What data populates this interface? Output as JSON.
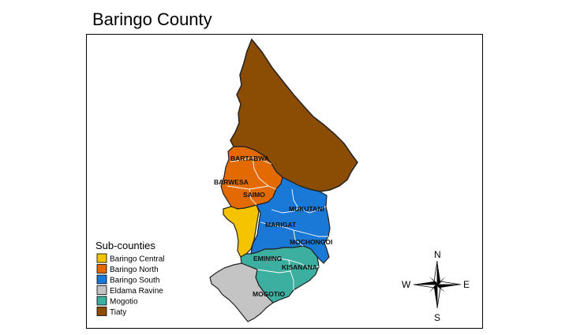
{
  "title": "Baringo County",
  "legend": {
    "title": "Sub-counties",
    "items": [
      {
        "label": "Baringo Central",
        "color": "#F5C400"
      },
      {
        "label": "Baringo North",
        "color": "#E36A00"
      },
      {
        "label": "Baringo South",
        "color": "#1A78D6"
      },
      {
        "label": "Eldama Ravine",
        "color": "#C4C4C4"
      },
      {
        "label": "Mogotio",
        "color": "#3DAFA0"
      },
      {
        "label": "Tiaty",
        "color": "#8B4C04"
      }
    ]
  },
  "ward_labels": {
    "bartabwa": "BARTABWA",
    "barwesa": "BARWESA",
    "saimo": "SAIMO",
    "mukutani": "MUKUTANI",
    "marigat": "MARIGAT",
    "mochongoi": "MOCHONGOI",
    "emining": "EMINING",
    "kisanana": "KISANANA",
    "mogotio": "MOGOTIO"
  },
  "compass": {
    "north": "N",
    "south": "S",
    "east": "E",
    "west": "W"
  }
}
